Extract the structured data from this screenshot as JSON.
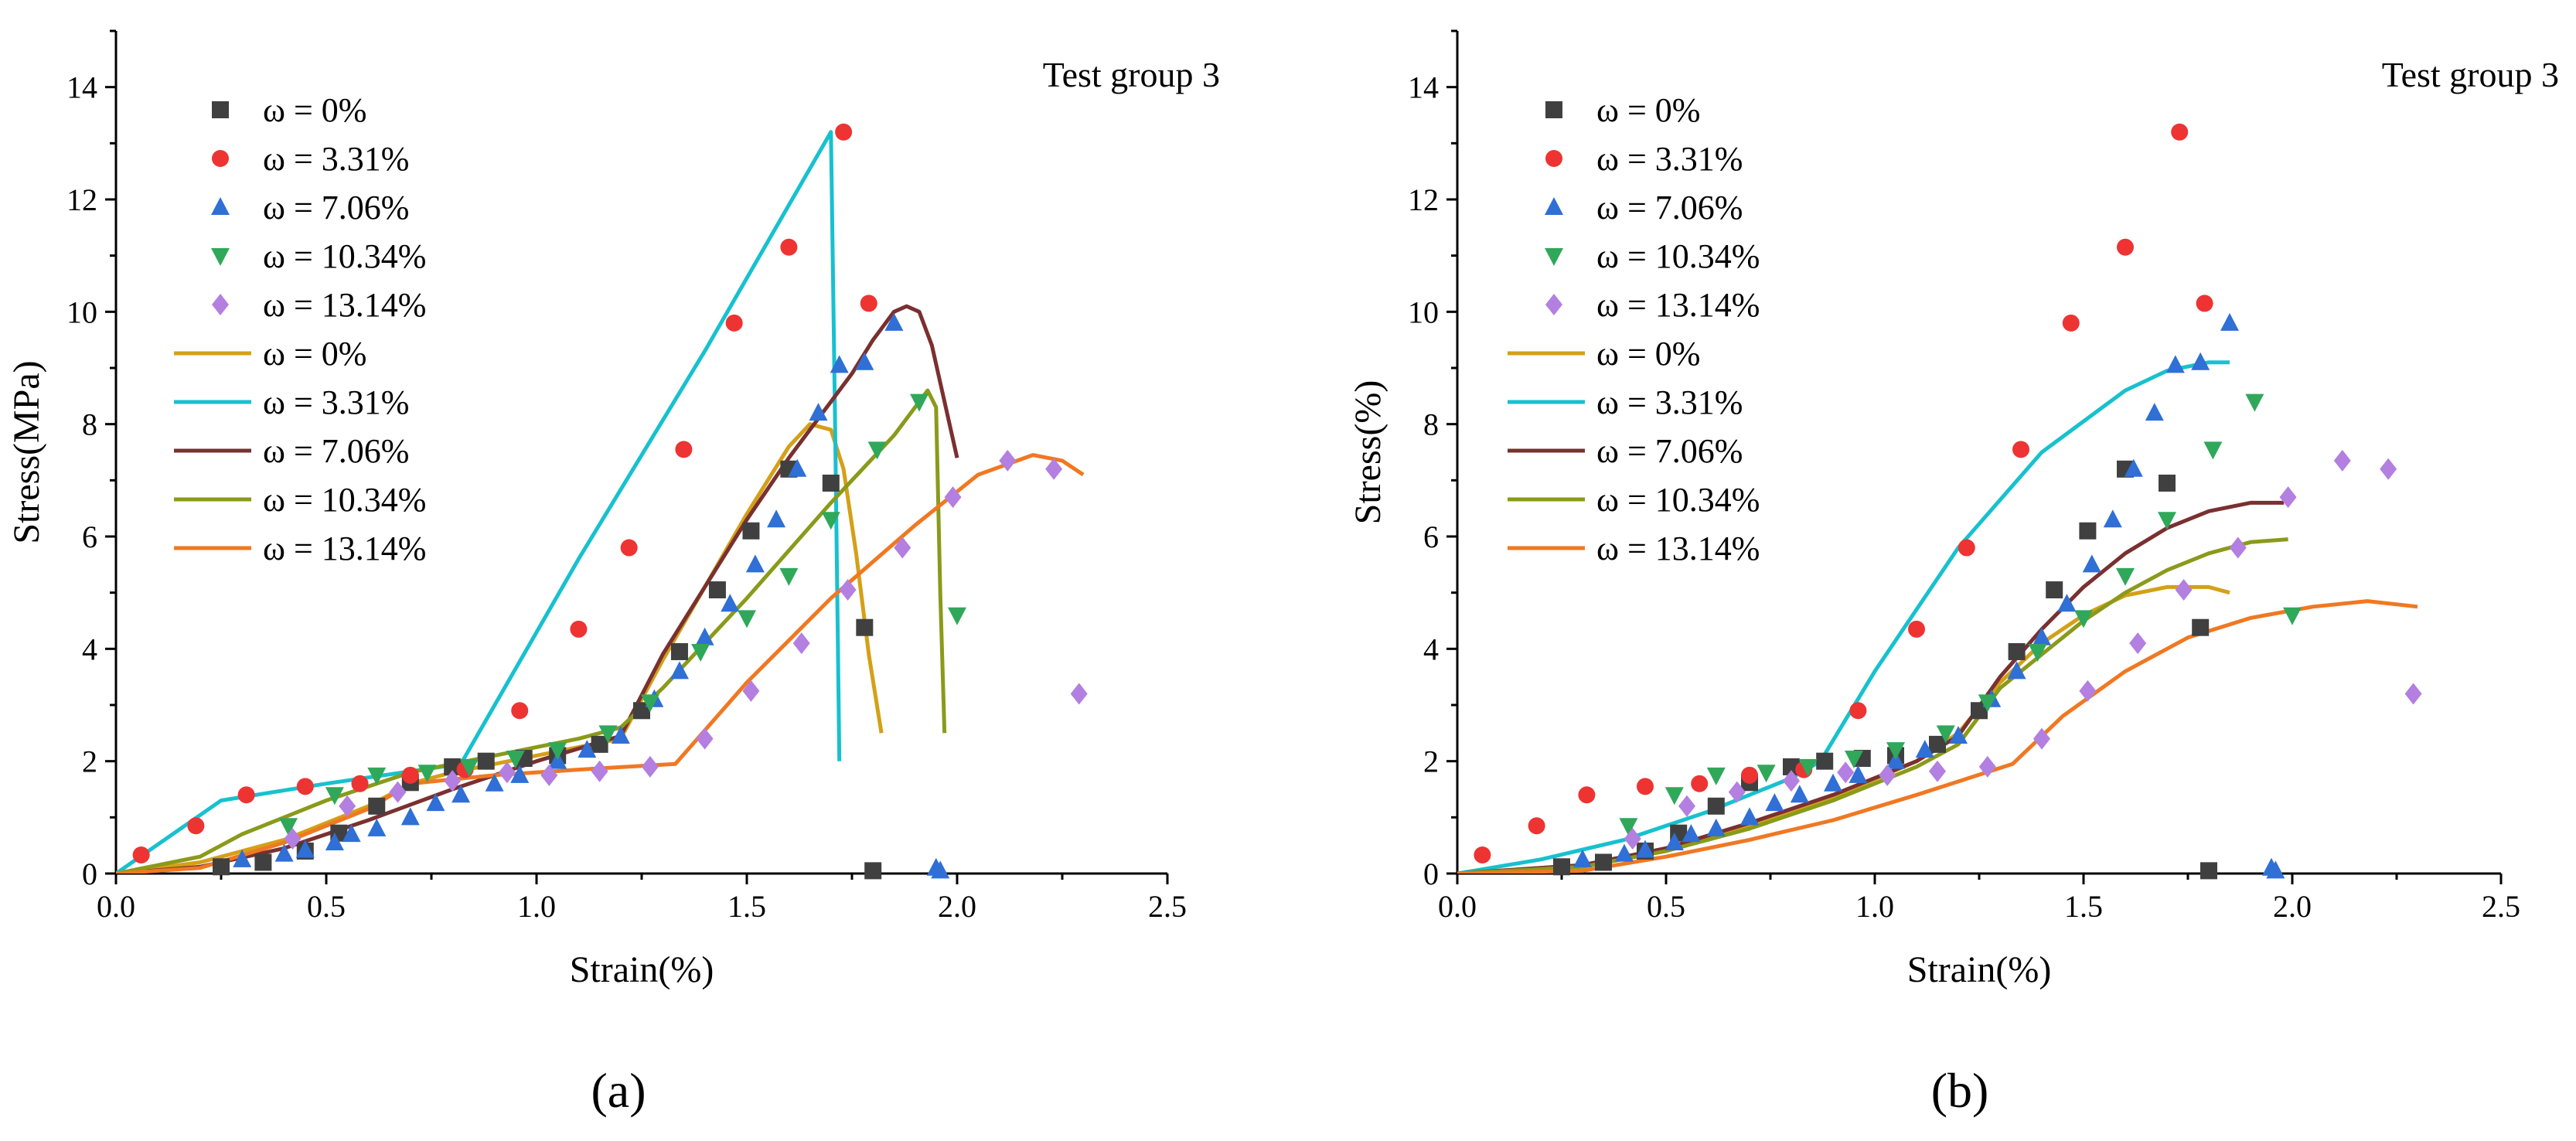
{
  "colors": {
    "exp_0": "#404040",
    "exp_3_31": "#ee3333",
    "exp_7_06": "#2f6fd6",
    "exp_10_34": "#2fa85a",
    "exp_13_14": "#b37fe0",
    "fit_0": "#d4a017",
    "fit_3_31": "#17c1cf",
    "fit_7_06": "#7a3030",
    "fit_10_34": "#8a9a1a",
    "fit_13_14": "#f07822"
  },
  "chart_data": [
    {
      "type": "scatter",
      "panel_label": "(a)",
      "title": "Test group 3",
      "xlabel": "Strain(%)",
      "ylabel": "Stress(MPa)",
      "xlim": [
        0,
        2.5
      ],
      "ylim": [
        0,
        15
      ],
      "xticks": [
        "0.0",
        "0.5",
        "1.0",
        "1.5",
        "2.0",
        "2.5"
      ],
      "yticks": [
        "0",
        "2",
        "4",
        "6",
        "8",
        "10",
        "12",
        "14"
      ],
      "legend_position": "top-left",
      "scatter_series": [
        {
          "name": "ω = 0%",
          "marker": "square",
          "color_key": "exp_0",
          "x": [
            0.25,
            0.35,
            0.45,
            0.53,
            0.62,
            0.7,
            0.8,
            0.88,
            0.97,
            1.05,
            1.15,
            1.25,
            1.34,
            1.43,
            1.51,
            1.6,
            1.7,
            1.78,
            1.8
          ],
          "y": [
            0.12,
            0.2,
            0.4,
            0.72,
            1.2,
            1.62,
            1.9,
            2.0,
            2.05,
            2.1,
            2.3,
            2.9,
            3.95,
            5.05,
            6.1,
            7.2,
            6.95,
            4.38,
            0.05
          ]
        },
        {
          "name": "ω = 3.31%",
          "marker": "circle",
          "color_key": "exp_3_31",
          "x": [
            0.06,
            0.19,
            0.31,
            0.45,
            0.58,
            0.7,
            0.83,
            0.96,
            1.1,
            1.22,
            1.35,
            1.47,
            1.6,
            1.73,
            1.79
          ],
          "y": [
            0.33,
            0.85,
            1.4,
            1.55,
            1.6,
            1.75,
            1.85,
            2.9,
            4.35,
            5.8,
            7.55,
            9.8,
            11.15,
            13.2,
            10.15
          ]
        },
        {
          "name": "ω = 7.06%",
          "marker": "triangle-up",
          "color_key": "exp_7_06",
          "x": [
            0.3,
            0.4,
            0.45,
            0.52,
            0.56,
            0.62,
            0.7,
            0.76,
            0.82,
            0.9,
            0.96,
            1.05,
            1.12,
            1.2,
            1.28,
            1.34,
            1.4,
            1.46,
            1.52,
            1.57,
            1.62,
            1.67,
            1.72,
            1.78,
            1.85,
            1.95,
            1.96
          ],
          "y": [
            0.25,
            0.35,
            0.42,
            0.55,
            0.7,
            0.8,
            1.0,
            1.25,
            1.4,
            1.6,
            1.75,
            2.0,
            2.2,
            2.45,
            3.1,
            3.6,
            4.2,
            4.8,
            5.5,
            6.3,
            7.2,
            8.2,
            9.05,
            9.1,
            9.8,
            0.1,
            0.05
          ]
        },
        {
          "name": "ω = 10.34%",
          "marker": "triangle-down",
          "color_key": "exp_10_34",
          "x": [
            0.41,
            0.52,
            0.62,
            0.74,
            0.84,
            0.95,
            1.05,
            1.17,
            1.27,
            1.39,
            1.5,
            1.6,
            1.7,
            1.81,
            1.91,
            2.0
          ],
          "y": [
            0.85,
            1.4,
            1.75,
            1.8,
            1.9,
            2.05,
            2.2,
            2.5,
            3.05,
            3.95,
            4.55,
            5.3,
            6.3,
            7.55,
            8.4,
            4.6
          ]
        },
        {
          "name": "ω = 13.14%",
          "marker": "diamond",
          "color_key": "exp_13_14",
          "x": [
            0.42,
            0.55,
            0.67,
            0.8,
            0.93,
            1.03,
            1.15,
            1.27,
            1.4,
            1.51,
            1.63,
            1.74,
            1.87,
            1.99,
            2.12,
            2.23,
            2.29
          ],
          "y": [
            0.62,
            1.2,
            1.45,
            1.65,
            1.8,
            1.75,
            1.82,
            1.9,
            2.4,
            3.25,
            4.1,
            5.05,
            5.8,
            6.7,
            7.35,
            7.2,
            3.2
          ]
        }
      ],
      "line_series": [
        {
          "name": "ω = 0%",
          "color_key": "fit_0",
          "x": [
            0,
            0.2,
            0.4,
            0.6,
            0.7,
            0.8,
            0.9,
            1.0,
            1.1,
            1.2,
            1.3,
            1.4,
            1.5,
            1.6,
            1.65,
            1.7,
            1.73,
            1.76,
            1.79,
            1.82
          ],
          "y": [
            0,
            0.2,
            0.6,
            1.2,
            1.6,
            1.8,
            1.95,
            2.1,
            2.25,
            2.4,
            3.8,
            5.1,
            6.4,
            7.6,
            8.0,
            7.9,
            7.2,
            5.7,
            3.9,
            2.5
          ]
        },
        {
          "name": "ω = 3.31%",
          "color_key": "fit_3_31",
          "x": [
            0,
            0.25,
            0.5,
            0.82,
            1.1,
            1.4,
            1.7,
            1.71,
            1.72
          ],
          "y": [
            0,
            1.3,
            1.6,
            1.95,
            5.6,
            9.3,
            13.2,
            8.0,
            2.0
          ]
        },
        {
          "name": "ω = 7.06%",
          "color_key": "fit_7_06",
          "x": [
            0,
            0.2,
            0.4,
            0.6,
            0.8,
            1.0,
            1.2,
            1.3,
            1.4,
            1.5,
            1.6,
            1.7,
            1.75,
            1.8,
            1.85,
            1.88,
            1.91,
            1.94,
            1.97,
            2.0
          ],
          "y": [
            0,
            0.12,
            0.45,
            0.95,
            1.5,
            2.0,
            2.45,
            3.9,
            5.1,
            6.3,
            7.4,
            8.4,
            8.9,
            9.5,
            10.0,
            10.1,
            10.0,
            9.4,
            8.4,
            7.4
          ]
        },
        {
          "name": "ω = 10.34%",
          "color_key": "fit_10_34",
          "x": [
            0,
            0.2,
            0.3,
            0.5,
            0.7,
            0.9,
            1.1,
            1.2,
            1.3,
            1.5,
            1.7,
            1.85,
            1.93,
            1.95,
            1.96,
            1.97
          ],
          "y": [
            0,
            0.3,
            0.7,
            1.3,
            1.8,
            2.1,
            2.4,
            2.6,
            3.3,
            4.9,
            6.6,
            7.8,
            8.6,
            8.3,
            5.0,
            2.5
          ]
        },
        {
          "name": "ω = 13.14%",
          "color_key": "fit_13_14",
          "x": [
            0,
            0.2,
            0.4,
            0.6,
            0.7,
            0.9,
            1.1,
            1.33,
            1.5,
            1.7,
            1.9,
            2.05,
            2.18,
            2.25,
            2.3
          ],
          "y": [
            0,
            0.1,
            0.55,
            1.15,
            1.6,
            1.75,
            1.85,
            1.95,
            3.4,
            4.9,
            6.2,
            7.1,
            7.45,
            7.35,
            7.1
          ]
        }
      ]
    },
    {
      "type": "scatter",
      "panel_label": "(b)",
      "title": "Test group 3",
      "xlabel": "Strain(%)",
      "ylabel": "Stress(%)",
      "xlim": [
        0,
        2.5
      ],
      "ylim": [
        0,
        15
      ],
      "xticks": [
        "0.0",
        "0.5",
        "1.0",
        "1.5",
        "2.0",
        "2.5"
      ],
      "yticks": [
        "0",
        "2",
        "4",
        "6",
        "8",
        "10",
        "12",
        "14"
      ],
      "legend_position": "top-left",
      "scatter_series": [
        {
          "name": "ω = 0%",
          "marker": "square",
          "color_key": "exp_0",
          "x": [
            0.25,
            0.35,
            0.45,
            0.53,
            0.62,
            0.7,
            0.8,
            0.88,
            0.97,
            1.05,
            1.15,
            1.25,
            1.34,
            1.43,
            1.51,
            1.6,
            1.7,
            1.78,
            1.8
          ],
          "y": [
            0.12,
            0.2,
            0.4,
            0.72,
            1.2,
            1.62,
            1.9,
            2.0,
            2.05,
            2.1,
            2.3,
            2.9,
            3.95,
            5.05,
            6.1,
            7.2,
            6.95,
            4.38,
            0.05
          ]
        },
        {
          "name": "ω = 3.31%",
          "marker": "circle",
          "color_key": "exp_3_31",
          "x": [
            0.06,
            0.19,
            0.31,
            0.45,
            0.58,
            0.7,
            0.83,
            0.96,
            1.1,
            1.22,
            1.35,
            1.47,
            1.6,
            1.73,
            1.79
          ],
          "y": [
            0.33,
            0.85,
            1.4,
            1.55,
            1.6,
            1.75,
            1.85,
            2.9,
            4.35,
            5.8,
            7.55,
            9.8,
            11.15,
            13.2,
            10.15
          ]
        },
        {
          "name": "ω = 7.06%",
          "marker": "triangle-up",
          "color_key": "exp_7_06",
          "x": [
            0.3,
            0.4,
            0.45,
            0.52,
            0.56,
            0.62,
            0.7,
            0.76,
            0.82,
            0.9,
            0.96,
            1.05,
            1.12,
            1.2,
            1.28,
            1.34,
            1.4,
            1.46,
            1.52,
            1.57,
            1.62,
            1.67,
            1.72,
            1.78,
            1.85,
            1.95,
            1.96
          ],
          "y": [
            0.25,
            0.35,
            0.42,
            0.55,
            0.7,
            0.8,
            1.0,
            1.25,
            1.4,
            1.6,
            1.75,
            2.0,
            2.2,
            2.45,
            3.1,
            3.6,
            4.2,
            4.8,
            5.5,
            6.3,
            7.2,
            8.2,
            9.05,
            9.1,
            9.8,
            0.1,
            0.05
          ]
        },
        {
          "name": "ω = 10.34%",
          "marker": "triangle-down",
          "color_key": "exp_10_34",
          "x": [
            0.41,
            0.52,
            0.62,
            0.74,
            0.84,
            0.95,
            1.05,
            1.17,
            1.27,
            1.39,
            1.5,
            1.6,
            1.7,
            1.81,
            1.91,
            2.0
          ],
          "y": [
            0.85,
            1.4,
            1.75,
            1.8,
            1.9,
            2.05,
            2.2,
            2.5,
            3.05,
            3.95,
            4.55,
            5.3,
            6.3,
            7.55,
            8.4,
            4.6
          ]
        },
        {
          "name": "ω = 13.14%",
          "marker": "diamond",
          "color_key": "exp_13_14",
          "x": [
            0.42,
            0.55,
            0.67,
            0.8,
            0.93,
            1.03,
            1.15,
            1.27,
            1.4,
            1.51,
            1.63,
            1.74,
            1.87,
            1.99,
            2.12,
            2.23,
            2.29
          ],
          "y": [
            0.62,
            1.2,
            1.45,
            1.65,
            1.8,
            1.75,
            1.82,
            1.9,
            2.4,
            3.25,
            4.1,
            5.05,
            5.8,
            6.7,
            7.35,
            7.2,
            3.2
          ]
        }
      ],
      "line_series": [
        {
          "name": "ω = 0%",
          "color_key": "fit_0",
          "x": [
            0,
            0.3,
            0.5,
            0.7,
            0.9,
            1.1,
            1.2,
            1.3,
            1.4,
            1.5,
            1.6,
            1.7,
            1.8,
            1.85
          ],
          "y": [
            0,
            0.15,
            0.45,
            0.85,
            1.35,
            2.0,
            2.5,
            3.4,
            4.1,
            4.6,
            4.95,
            5.1,
            5.1,
            5.0
          ]
        },
        {
          "name": "ω = 3.31%",
          "color_key": "fit_3_31",
          "x": [
            0,
            0.2,
            0.4,
            0.6,
            0.8,
            0.87,
            1.0,
            1.2,
            1.4,
            1.6,
            1.7,
            1.8,
            1.85
          ],
          "y": [
            0,
            0.25,
            0.6,
            1.1,
            1.7,
            2.0,
            3.6,
            5.8,
            7.5,
            8.6,
            8.95,
            9.1,
            9.1
          ]
        },
        {
          "name": "ω = 7.06%",
          "color_key": "fit_7_06",
          "x": [
            0,
            0.3,
            0.5,
            0.7,
            0.9,
            1.1,
            1.2,
            1.3,
            1.4,
            1.5,
            1.6,
            1.7,
            1.8,
            1.9,
            1.98
          ],
          "y": [
            0,
            0.15,
            0.45,
            0.9,
            1.4,
            2.0,
            2.45,
            3.5,
            4.35,
            5.1,
            5.7,
            6.15,
            6.45,
            6.6,
            6.6
          ]
        },
        {
          "name": "ω = 10.34%",
          "color_key": "fit_10_34",
          "x": [
            0,
            0.3,
            0.5,
            0.7,
            0.9,
            1.1,
            1.2,
            1.3,
            1.4,
            1.5,
            1.6,
            1.7,
            1.8,
            1.9,
            1.99
          ],
          "y": [
            0,
            0.12,
            0.4,
            0.8,
            1.3,
            1.9,
            2.3,
            3.3,
            3.9,
            4.5,
            5.0,
            5.4,
            5.7,
            5.9,
            5.95
          ]
        },
        {
          "name": "ω = 13.14%",
          "color_key": "fit_13_14",
          "x": [
            0,
            0.3,
            0.5,
            0.7,
            0.9,
            1.1,
            1.33,
            1.45,
            1.6,
            1.75,
            1.9,
            2.05,
            2.18,
            2.3
          ],
          "y": [
            0,
            0.05,
            0.3,
            0.6,
            0.95,
            1.4,
            1.95,
            2.8,
            3.6,
            4.2,
            4.55,
            4.75,
            4.85,
            4.75
          ]
        }
      ]
    }
  ]
}
